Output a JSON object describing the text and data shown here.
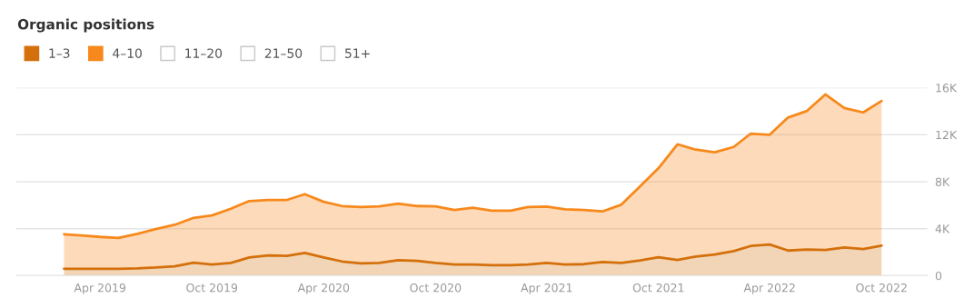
{
  "chart_data": {
    "type": "area",
    "title": "Organic positions",
    "stacked": true,
    "x": [
      "2019-02",
      "2019-03",
      "2019-04",
      "2019-05",
      "2019-06",
      "2019-07",
      "2019-08",
      "2019-09",
      "2019-10",
      "2019-11",
      "2019-12",
      "2020-01",
      "2020-02",
      "2020-03",
      "2020-04",
      "2020-05",
      "2020-06",
      "2020-07",
      "2020-08",
      "2020-09",
      "2020-10",
      "2020-11",
      "2020-12",
      "2021-01",
      "2021-02",
      "2021-03",
      "2021-04",
      "2021-05",
      "2021-06",
      "2021-07",
      "2021-08",
      "2021-09",
      "2021-10",
      "2021-11",
      "2021-12",
      "2022-01",
      "2022-02",
      "2022-03",
      "2022-04",
      "2022-05",
      "2022-06",
      "2022-07",
      "2022-08",
      "2022-09",
      "2022-10"
    ],
    "series": [
      {
        "name": "1–3",
        "color": "#d4700c",
        "values": [
          590,
          590,
          590,
          590,
          620,
          690,
          800,
          1110,
          950,
          1080,
          1550,
          1730,
          1680,
          1930,
          1550,
          1210,
          1050,
          1080,
          1320,
          1260,
          1080,
          950,
          950,
          900,
          900,
          950,
          1080,
          950,
          980,
          1160,
          1080,
          1290,
          1570,
          1340,
          1630,
          1810,
          2090,
          2530,
          2650,
          2140,
          2220,
          2190,
          2400,
          2270,
          2550
        ]
      },
      {
        "name": "4–10",
        "color": "#f7891c",
        "values": [
          2940,
          2840,
          2710,
          2630,
          2940,
          3280,
          3530,
          3810,
          4180,
          4620,
          4800,
          4720,
          4770,
          5010,
          4740,
          4720,
          4800,
          4820,
          4820,
          4670,
          4820,
          4650,
          4830,
          4640,
          4640,
          4900,
          4800,
          4700,
          4620,
          4310,
          4960,
          6320,
          7590,
          9850,
          9100,
          8690,
          8870,
          9570,
          9350,
          11330,
          11810,
          13240,
          11870,
          11630,
          12330
        ]
      },
      {
        "name": "11–20",
        "color": null,
        "values": [
          null,
          null,
          null,
          null,
          null,
          null,
          null,
          null,
          null,
          null,
          null,
          null,
          null,
          null,
          null,
          null,
          null,
          null,
          null,
          null,
          null,
          null,
          null,
          null,
          null,
          null,
          null,
          null,
          null,
          null,
          null,
          null,
          null,
          null,
          null,
          null,
          null,
          null,
          null,
          null,
          null,
          null,
          null,
          null,
          null
        ]
      },
      {
        "name": "21–50",
        "color": null,
        "values": [
          null,
          null,
          null,
          null,
          null,
          null,
          null,
          null,
          null,
          null,
          null,
          null,
          null,
          null,
          null,
          null,
          null,
          null,
          null,
          null,
          null,
          null,
          null,
          null,
          null,
          null,
          null,
          null,
          null,
          null,
          null,
          null,
          null,
          null,
          null,
          null,
          null,
          null,
          null,
          null,
          null,
          null,
          null,
          null,
          null
        ]
      },
      {
        "name": "51+",
        "color": null,
        "values": [
          null,
          null,
          null,
          null,
          null,
          null,
          null,
          null,
          null,
          null,
          null,
          null,
          null,
          null,
          null,
          null,
          null,
          null,
          null,
          null,
          null,
          null,
          null,
          null,
          null,
          null,
          null,
          null,
          null,
          null,
          null,
          null,
          null,
          null,
          null,
          null,
          null,
          null,
          null,
          null,
          null,
          null,
          null,
          null,
          null
        ]
      }
    ],
    "xlim": [
      "2018-11-15",
      "2022-12-15"
    ],
    "xticks": [
      {
        "value": "2019-04",
        "label": "Apr 2019"
      },
      {
        "value": "2019-10",
        "label": "Oct 2019"
      },
      {
        "value": "2020-04",
        "label": "Apr 2020"
      },
      {
        "value": "2020-10",
        "label": "Oct 2020"
      },
      {
        "value": "2021-04",
        "label": "Apr 2021"
      },
      {
        "value": "2021-10",
        "label": "Oct 2021"
      },
      {
        "value": "2022-04",
        "label": "Apr 2022"
      },
      {
        "value": "2022-10",
        "label": "Oct 2022"
      }
    ],
    "ylim": [
      0,
      16000
    ],
    "yticks": [
      0,
      {
        "value": 4000,
        "label": "4K"
      },
      {
        "value": 8000,
        "label": "8K"
      },
      {
        "value": 12000,
        "label": "12K"
      },
      {
        "value": 16000,
        "label": "16K"
      }
    ],
    "grid": "y",
    "legend": "top left"
  }
}
